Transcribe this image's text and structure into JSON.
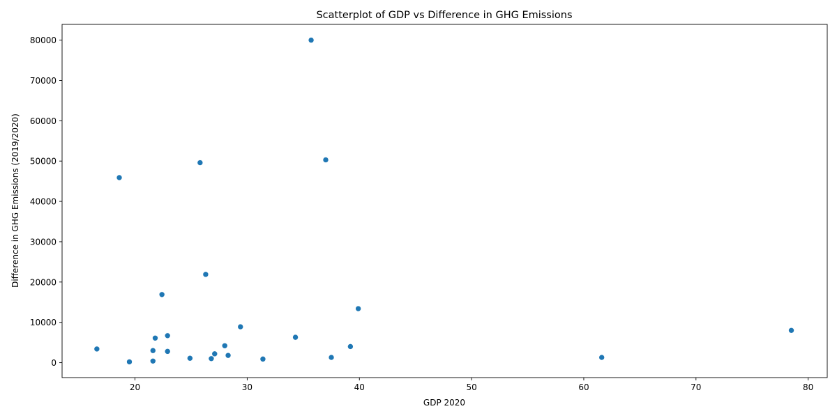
{
  "chart_data": {
    "type": "scatter",
    "title": "Scatterplot of GDP vs Difference in GHG Emissions",
    "xlabel": "GDP 2020",
    "ylabel": "Difference in GHG Emissions (2019/2020)",
    "xlim": [
      13.5,
      81.7
    ],
    "ylim": [
      -3700,
      83900
    ],
    "xticks": [
      20,
      30,
      40,
      50,
      60,
      70,
      80
    ],
    "yticks": [
      0,
      10000,
      20000,
      30000,
      40000,
      50000,
      60000,
      70000,
      80000
    ],
    "grid": false,
    "marker_color": "#1f77b4",
    "points": [
      {
        "x": 35.7,
        "y": 80000
      },
      {
        "x": 37.0,
        "y": 50300
      },
      {
        "x": 25.8,
        "y": 49600
      },
      {
        "x": 18.6,
        "y": 45900
      },
      {
        "x": 26.3,
        "y": 21900
      },
      {
        "x": 22.4,
        "y": 16900
      },
      {
        "x": 39.9,
        "y": 13400
      },
      {
        "x": 29.4,
        "y": 8900
      },
      {
        "x": 78.5,
        "y": 8000
      },
      {
        "x": 22.9,
        "y": 6700
      },
      {
        "x": 34.3,
        "y": 6300
      },
      {
        "x": 21.8,
        "y": 6100
      },
      {
        "x": 28.0,
        "y": 4200
      },
      {
        "x": 39.2,
        "y": 4000
      },
      {
        "x": 16.6,
        "y": 3400
      },
      {
        "x": 21.6,
        "y": 3000
      },
      {
        "x": 22.9,
        "y": 2800
      },
      {
        "x": 27.1,
        "y": 2200
      },
      {
        "x": 28.3,
        "y": 1800
      },
      {
        "x": 37.5,
        "y": 1300
      },
      {
        "x": 61.6,
        "y": 1300
      },
      {
        "x": 24.9,
        "y": 1100
      },
      {
        "x": 26.8,
        "y": 1000
      },
      {
        "x": 31.4,
        "y": 900
      },
      {
        "x": 21.6,
        "y": 400
      },
      {
        "x": 19.5,
        "y": 200
      }
    ]
  }
}
